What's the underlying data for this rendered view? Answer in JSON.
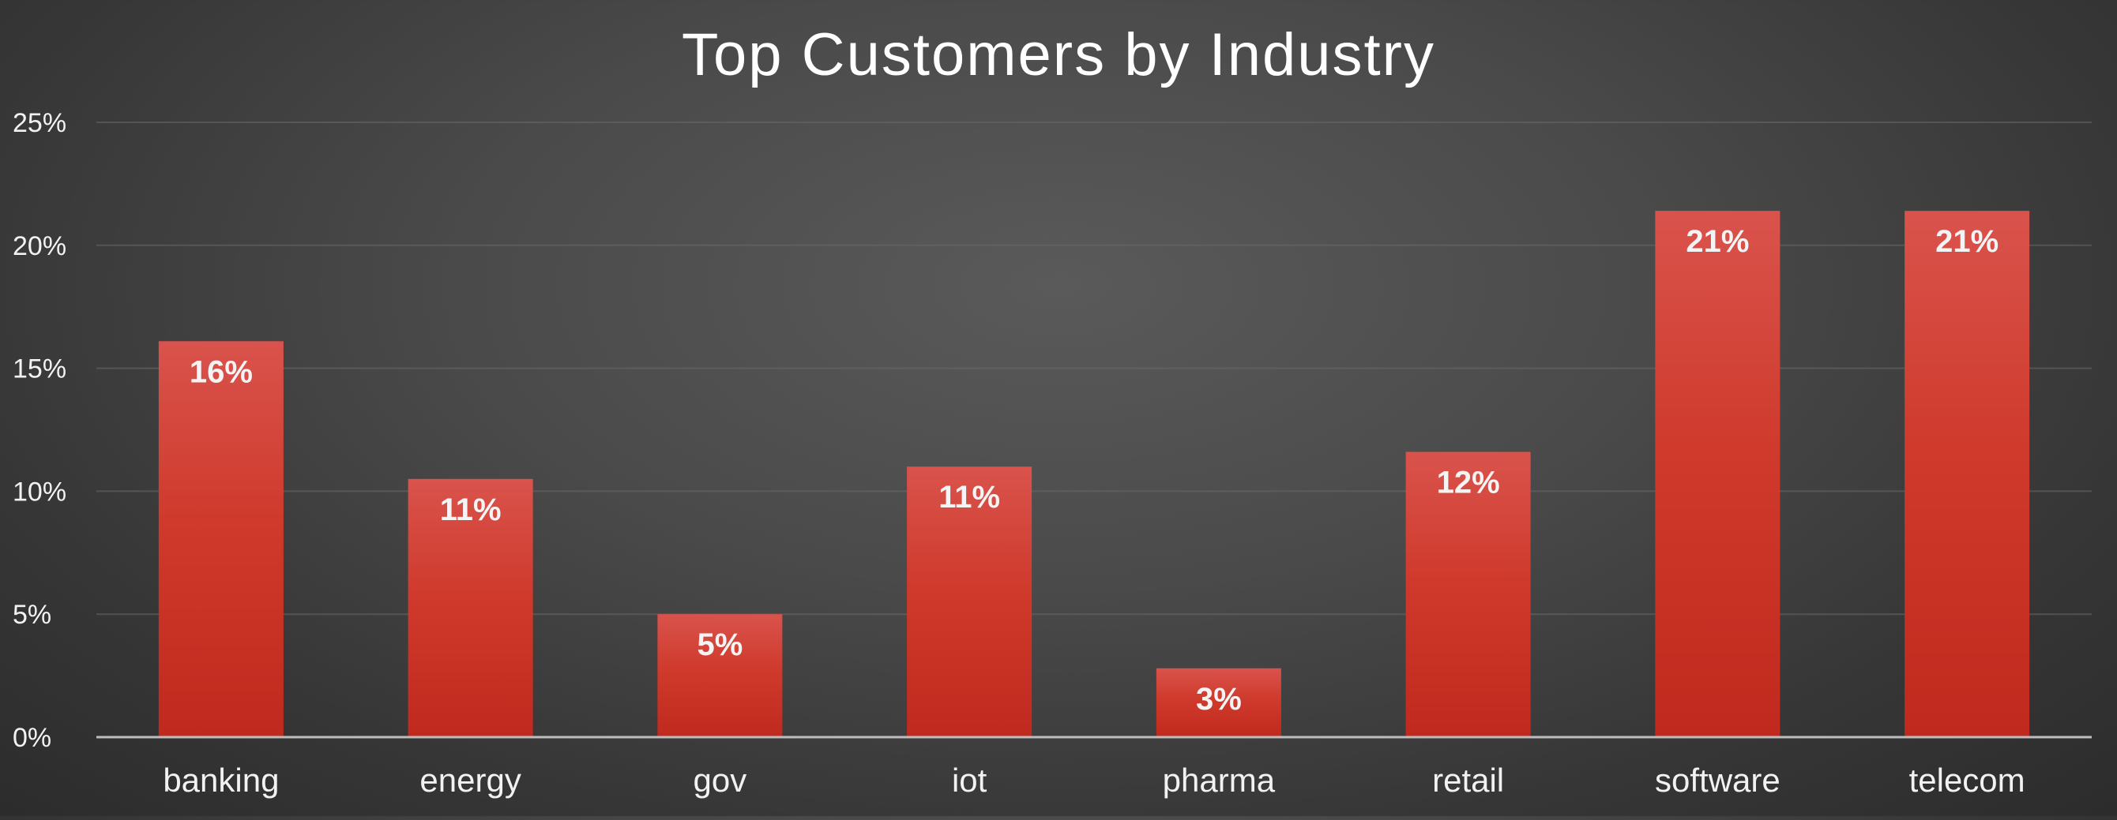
{
  "colors": {
    "bar_top": "#d9534c",
    "bar_bottom": "#c02a1e",
    "background": "#474747",
    "text": "#f2f2f2"
  },
  "chart_data": {
    "type": "bar",
    "title": "Top Customers by Industry",
    "xlabel": "",
    "ylabel": "",
    "categories": [
      "banking",
      "energy",
      "gov",
      "iot",
      "pharma",
      "retail",
      "software",
      "telecom"
    ],
    "values": [
      16.1,
      10.5,
      5.0,
      11.0,
      2.8,
      11.6,
      21.4,
      21.4
    ],
    "data_labels": [
      "16%",
      "11%",
      "5%",
      "11%",
      "3%",
      "12%",
      "21%",
      "21%"
    ],
    "ylim": [
      0,
      25
    ],
    "yticks": [
      0,
      5,
      10,
      15,
      20,
      25
    ],
    "ytick_labels": [
      "0%",
      "5%",
      "10%",
      "15%",
      "20%",
      "25%"
    ],
    "grid": true,
    "legend": "none"
  }
}
